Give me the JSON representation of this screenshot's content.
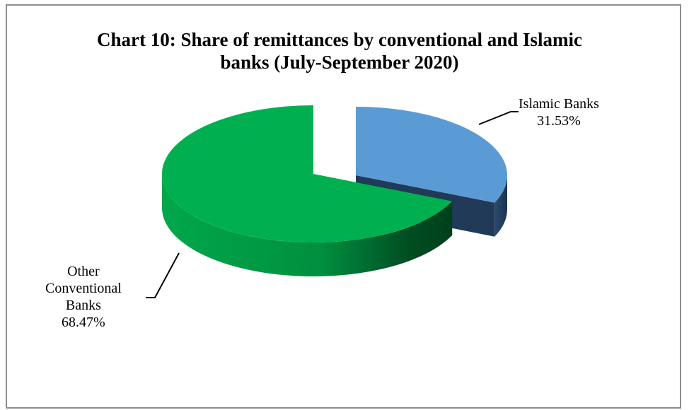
{
  "chart_data": {
    "type": "pie",
    "title": "Chart 10: Share of remittances by conventional and Islamic banks (July-September 2020)",
    "title_lines": [
      "Chart 10: Share of remittances by conventional and Islamic",
      "banks (July-September 2020)"
    ],
    "slices": [
      {
        "name": "Islamic Banks",
        "value": 31.53,
        "value_label": "31.53%",
        "label_lines": [
          "Islamic Banks"
        ],
        "color": "#5b9bd5",
        "side_color": "#203a58"
      },
      {
        "name": "Other Conventional Banks",
        "value": 68.47,
        "value_label": "68.47%",
        "label_lines": [
          "Other",
          "Conventional",
          "Banks"
        ],
        "color": "#00b050",
        "side_color": "#007a37"
      }
    ],
    "style": "3d-exploded",
    "legend": "none"
  }
}
